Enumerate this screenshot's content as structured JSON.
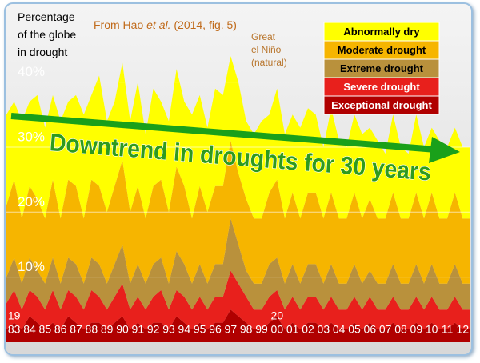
{
  "chart_data": {
    "type": "stacked-area",
    "ylabel": "Percentage of the globe in drought",
    "source": {
      "prefix": "From Hao ",
      "italic": "et al.",
      "suffix": " (2014, fig. 5)"
    },
    "annotation": "Great el Niño (natural)",
    "trend_label": "Downtrend in droughts for 30 years",
    "century_labels": [
      {
        "value": 1983.5,
        "label": "19"
      },
      {
        "value": 2000.5,
        "label": "20"
      }
    ],
    "xlim": [
      1983,
      2013
    ],
    "ylim": [
      0,
      52
    ],
    "yticks": [
      {
        "value": 10,
        "label": "10%"
      },
      {
        "value": 20,
        "label": "20%"
      },
      {
        "value": 30,
        "label": "30%"
      },
      {
        "value": 40,
        "label": "40%"
      }
    ],
    "xticks": [
      {
        "value": 1983.5,
        "label": "83"
      },
      {
        "value": 1984.5,
        "label": "84"
      },
      {
        "value": 1985.5,
        "label": "85"
      },
      {
        "value": 1986.5,
        "label": "86"
      },
      {
        "value": 1987.5,
        "label": "87"
      },
      {
        "value": 1988.5,
        "label": "88"
      },
      {
        "value": 1989.5,
        "label": "89"
      },
      {
        "value": 1990.5,
        "label": "90"
      },
      {
        "value": 1991.5,
        "label": "91"
      },
      {
        "value": 1992.5,
        "label": "92"
      },
      {
        "value": 1993.5,
        "label": "93"
      },
      {
        "value": 1994.5,
        "label": "94"
      },
      {
        "value": 1995.5,
        "label": "95"
      },
      {
        "value": 1996.5,
        "label": "96"
      },
      {
        "value": 1997.5,
        "label": "97"
      },
      {
        "value": 1998.5,
        "label": "98"
      },
      {
        "value": 1999.5,
        "label": "99"
      },
      {
        "value": 2000.5,
        "label": "00"
      },
      {
        "value": 2001.5,
        "label": "01"
      },
      {
        "value": 2002.5,
        "label": "02"
      },
      {
        "value": 2003.5,
        "label": "03"
      },
      {
        "value": 2004.5,
        "label": "04"
      },
      {
        "value": 2005.5,
        "label": "05"
      },
      {
        "value": 2006.5,
        "label": "06"
      },
      {
        "value": 2007.5,
        "label": "07"
      },
      {
        "value": 2008.5,
        "label": "08"
      },
      {
        "value": 2009.5,
        "label": "09"
      },
      {
        "value": 2010.5,
        "label": "10"
      },
      {
        "value": 2011.5,
        "label": "11"
      },
      {
        "value": 2012.5,
        "label": "12"
      }
    ],
    "x": [
      1983,
      1983.5,
      1984,
      1984.5,
      1985,
      1985.5,
      1986,
      1986.5,
      1987,
      1987.5,
      1988,
      1988.5,
      1989,
      1989.5,
      1990,
      1990.5,
      1991,
      1991.5,
      1992,
      1992.5,
      1993,
      1993.5,
      1994,
      1994.5,
      1995,
      1995.5,
      1996,
      1996.5,
      1997,
      1997.5,
      1998,
      1998.5,
      1999,
      1999.5,
      2000,
      2000.5,
      2001,
      2001.5,
      2002,
      2002.5,
      2003,
      2003.5,
      2004,
      2004.5,
      2005,
      2005.5,
      2006,
      2006.5,
      2007,
      2007.5,
      2008,
      2008.5,
      2009,
      2009.5,
      2010,
      2010.5,
      2011,
      2011.5,
      2012,
      2012.5
    ],
    "series": [
      {
        "name": "Exceptional drought",
        "color": "#b00000",
        "values": [
          2,
          3,
          2,
          4,
          3,
          2,
          3,
          2,
          4,
          3,
          2,
          3,
          3,
          2,
          3,
          4,
          2,
          3,
          2,
          3,
          3,
          2,
          4,
          3,
          2,
          3,
          2,
          3,
          3,
          5,
          4,
          3,
          2,
          2,
          3,
          4,
          2,
          3,
          2,
          3,
          3,
          2,
          3,
          2,
          2,
          3,
          2,
          3,
          2,
          2,
          3,
          2,
          2,
          3,
          2,
          3,
          2,
          2,
          3,
          2
        ]
      },
      {
        "name": "Severe drought",
        "color": "#e8201c",
        "values": [
          4,
          5,
          3,
          4,
          4,
          3,
          5,
          3,
          4,
          4,
          3,
          5,
          4,
          3,
          4,
          5,
          3,
          4,
          3,
          4,
          5,
          3,
          4,
          4,
          3,
          4,
          3,
          4,
          4,
          6,
          5,
          4,
          3,
          3,
          4,
          4,
          3,
          4,
          3,
          4,
          4,
          3,
          4,
          3,
          3,
          4,
          3,
          4,
          3,
          3,
          4,
          3,
          3,
          4,
          3,
          4,
          3,
          3,
          4,
          3
        ]
      },
      {
        "name": "Extreme drought",
        "color": "#b9913c",
        "values": [
          4,
          5,
          4,
          5,
          4,
          4,
          5,
          4,
          5,
          5,
          4,
          5,
          5,
          4,
          5,
          6,
          4,
          5,
          4,
          5,
          5,
          4,
          6,
          5,
          4,
          5,
          4,
          5,
          5,
          8,
          6,
          4,
          4,
          4,
          5,
          5,
          4,
          5,
          4,
          5,
          5,
          4,
          5,
          4,
          4,
          5,
          4,
          4,
          4,
          4,
          5,
          4,
          4,
          5,
          4,
          5,
          4,
          4,
          5,
          4
        ]
      },
      {
        "name": "Moderate drought",
        "color": "#f6b500",
        "values": [
          11,
          12,
          10,
          11,
          11,
          10,
          12,
          10,
          12,
          12,
          10,
          12,
          12,
          11,
          12,
          13,
          11,
          12,
          10,
          12,
          12,
          11,
          13,
          12,
          10,
          12,
          11,
          12,
          12,
          12,
          11,
          11,
          10,
          10,
          11,
          12,
          10,
          11,
          10,
          11,
          11,
          10,
          11,
          10,
          10,
          11,
          10,
          11,
          10,
          10,
          11,
          10,
          10,
          11,
          10,
          11,
          10,
          10,
          11,
          10
        ]
      },
      {
        "name": "Abnormally dry",
        "color": "#ffff00",
        "values": [
          14,
          12,
          15,
          13,
          16,
          14,
          13,
          15,
          12,
          14,
          16,
          13,
          17,
          14,
          13,
          15,
          14,
          16,
          13,
          15,
          12,
          14,
          15,
          13,
          16,
          14,
          13,
          15,
          14,
          13,
          14,
          12,
          13,
          15,
          12,
          14,
          13,
          12,
          14,
          13,
          12,
          11,
          13,
          12,
          11,
          12,
          13,
          11,
          12,
          10,
          12,
          11,
          10,
          12,
          11,
          10,
          12,
          11,
          10,
          11
        ]
      }
    ],
    "legend": "top-right",
    "grid": true
  }
}
